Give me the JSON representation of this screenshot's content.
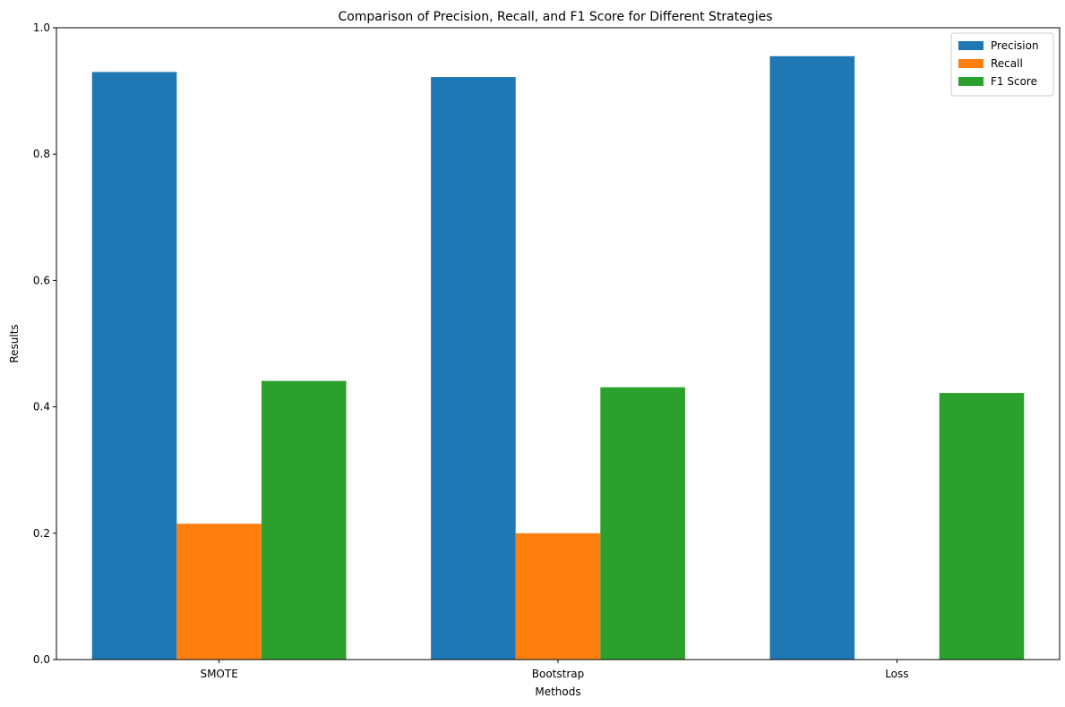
{
  "chart_data": {
    "type": "bar",
    "title": "Comparison of Precision, Recall, and F1 Score for Different Strategies",
    "xlabel": "Methods",
    "ylabel": "Results",
    "categories": [
      "SMOTE",
      "Bootstrap",
      "Loss"
    ],
    "series": [
      {
        "name": "Precision",
        "color": "#1f77b4",
        "values": [
          0.93,
          0.922,
          0.955
        ]
      },
      {
        "name": "Recall",
        "color": "#ff7f0e",
        "values": [
          0.215,
          0.2,
          0.0
        ]
      },
      {
        "name": "F1 Score",
        "color": "#2ca02c",
        "values": [
          0.441,
          0.431,
          0.422
        ]
      }
    ],
    "ylim": [
      0,
      1.0
    ],
    "yticks": [
      "0.0",
      "0.2",
      "0.4",
      "0.6",
      "0.8",
      "1.0"
    ],
    "grid": false,
    "legend_position": "top-right"
  }
}
